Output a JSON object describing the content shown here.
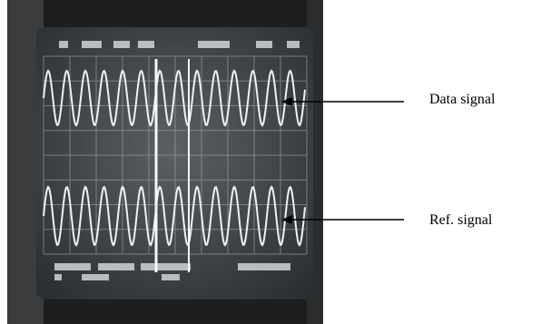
{
  "labels": {
    "data_signal": "Data signal",
    "ref_signal": "Ref. signal"
  }
}
